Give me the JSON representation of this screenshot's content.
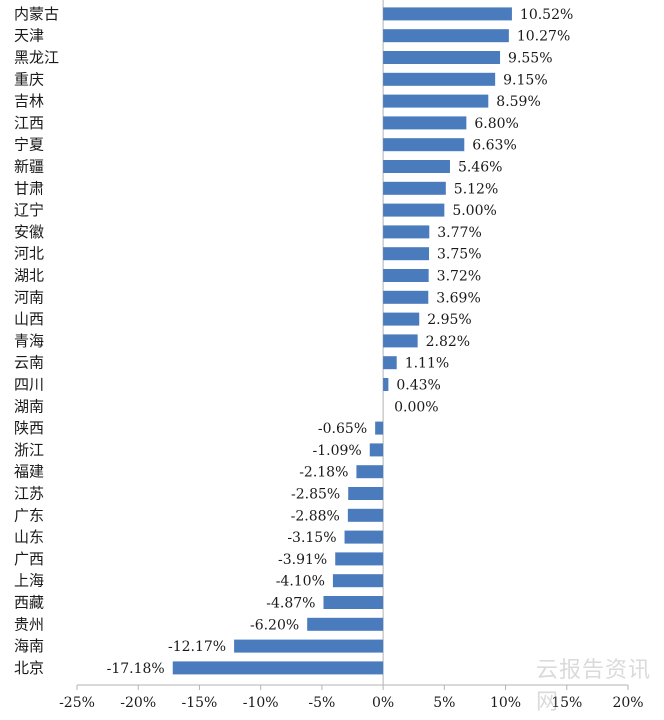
{
  "chart_data": {
    "type": "bar",
    "orientation": "horizontal",
    "categories": [
      "内蒙古",
      "天津",
      "黑龙江",
      "重庆",
      "吉林",
      "江西",
      "宁夏",
      "新疆",
      "甘肃",
      "辽宁",
      "安徽",
      "河北",
      "湖北",
      "河南",
      "山西",
      "青海",
      "云南",
      "四川",
      "湖南",
      "陕西",
      "浙江",
      "福建",
      "江苏",
      "广东",
      "山东",
      "广西",
      "上海",
      "西藏",
      "贵州",
      "海南",
      "北京"
    ],
    "values": [
      10.52,
      10.27,
      9.55,
      9.15,
      8.59,
      6.8,
      6.63,
      5.46,
      5.12,
      5.0,
      3.77,
      3.75,
      3.72,
      3.69,
      2.95,
      2.82,
      1.11,
      0.43,
      0.0,
      -0.65,
      -1.09,
      -2.18,
      -2.85,
      -2.88,
      -3.15,
      -3.91,
      -4.1,
      -4.87,
      -6.2,
      -12.17,
      -17.18
    ],
    "value_labels": [
      "10.52%",
      "10.27%",
      "9.55%",
      "9.15%",
      "8.59%",
      "6.80%",
      "6.63%",
      "5.46%",
      "5.12%",
      "5.00%",
      "3.77%",
      "3.75%",
      "3.72%",
      "3.69%",
      "2.95%",
      "2.82%",
      "1.11%",
      "0.43%",
      "0.00%",
      "-0.65%",
      "-1.09%",
      "-2.18%",
      "-2.85%",
      "-2.88%",
      "-3.15%",
      "-3.91%",
      "-4.10%",
      "-4.87%",
      "-6.20%",
      "-12.17%",
      "-17.18%"
    ],
    "xlim": [
      -25,
      20
    ],
    "xticks": [
      -25,
      -20,
      -15,
      -10,
      -5,
      0,
      5,
      10,
      15,
      20
    ],
    "xtick_labels": [
      "-25%",
      "-20%",
      "-15%",
      "-10%",
      "-5%",
      "0%",
      "5%",
      "10%",
      "15%",
      "20%"
    ],
    "bar_color": "#4a7bbd",
    "grid": false,
    "title": "",
    "xlabel": "",
    "ylabel": ""
  }
}
